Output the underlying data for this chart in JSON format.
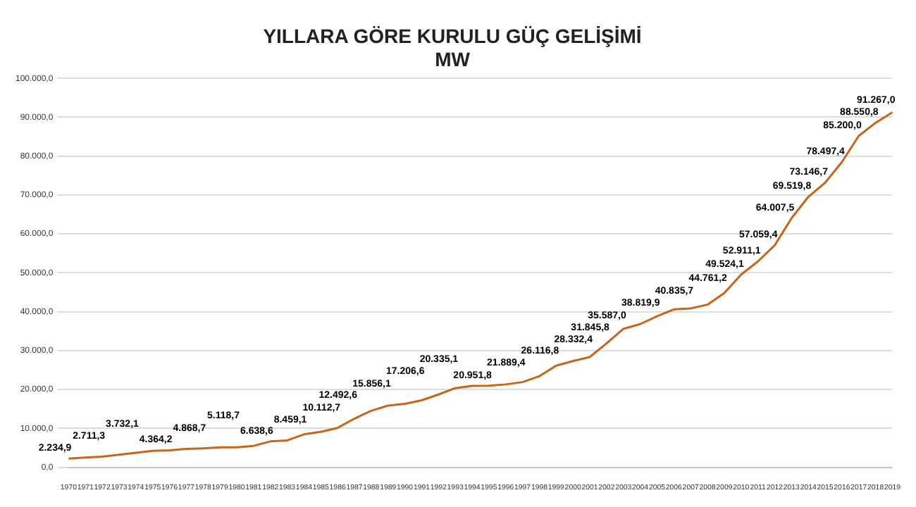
{
  "chart_data": {
    "type": "line",
    "title": "YILLARA GÖRE KURULU GÜÇ GELİŞİMİ",
    "subtitle": "MW",
    "categories": [
      "1970",
      "1971",
      "1972",
      "1973",
      "1974",
      "1975",
      "1976",
      "1977",
      "1978",
      "1979",
      "1980",
      "1981",
      "1982",
      "1983",
      "1984",
      "1985",
      "1986",
      "1987",
      "1988",
      "1989",
      "1990",
      "1991",
      "1992",
      "1993",
      "1994",
      "1995",
      "1996",
      "1997",
      "1998",
      "1999",
      "2000",
      "2001",
      "2002",
      "2003",
      "2004",
      "2005",
      "2006",
      "2007",
      "2008",
      "2009",
      "2010",
      "2011",
      "2012",
      "2013",
      "2014",
      "2015",
      "2016",
      "2017",
      "2018",
      "2019"
    ],
    "series": [
      {
        "color": "#c5651e",
        "values": [
          2234.9,
          2500,
          2711.3,
          3200,
          3732.1,
          4200,
          4364.2,
          4700,
          4868.7,
          5100,
          5118.7,
          5500,
          6638.6,
          6900,
          8459.1,
          9100,
          10112.7,
          12492.6,
          14500,
          15856.1,
          16300,
          17206.6,
          18700,
          20335.1,
          20900,
          20951.8,
          21300,
          21889.4,
          23400,
          26116.8,
          27300,
          28332.4,
          31845.8,
          35587.0,
          36800,
          38819.9,
          40600,
          40835.7,
          41800,
          44761.2,
          49524.1,
          52911.1,
          57059.4,
          64007.5,
          69519.8,
          73146.7,
          78497.4,
          85200.0,
          88550.8,
          91267.0
        ],
        "value_labels": [
          "2.234,9",
          null,
          "2.711,3",
          null,
          "3.732,1",
          null,
          "4.364,2",
          null,
          "4.868,7",
          null,
          "5.118,7",
          null,
          "6.638,6",
          null,
          "8.459,1",
          null,
          "10.112,7",
          "12.492,6",
          null,
          "15.856,1",
          null,
          "17.206,6",
          null,
          "20.335,1",
          null,
          "20.951,8",
          null,
          "21.889,4",
          null,
          "26.116,8",
          null,
          "28.332,4",
          "31.845,8",
          "35.587,0",
          null,
          "38.819,9",
          null,
          "40.835,7",
          null,
          "44.761,2",
          "49.524,1",
          "52.911,1",
          "57.059,4",
          "64.007,5",
          "69.519,8",
          "73.146,7",
          "78.497,4",
          "85.200,0",
          "88.550,8",
          "91.267,0"
        ]
      }
    ],
    "ylim": [
      0,
      100000
    ],
    "yticks": [
      {
        "value": 0,
        "label": "0,0"
      },
      {
        "value": 10000,
        "label": "10.000,0"
      },
      {
        "value": 20000,
        "label": "20.000,0"
      },
      {
        "value": 30000,
        "label": "30.000,0"
      },
      {
        "value": 40000,
        "label": "40.000,0"
      },
      {
        "value": 50000,
        "label": "50.000,0"
      },
      {
        "value": 60000,
        "label": "60.000,0"
      },
      {
        "value": 70000,
        "label": "70.000,0"
      },
      {
        "value": 80000,
        "label": "80.000,0"
      },
      {
        "value": 90000,
        "label": "90.000,0"
      },
      {
        "value": 100000,
        "label": "100.000,0"
      }
    ],
    "grid": "y",
    "legend": false,
    "marker": "none",
    "line_style": "solid"
  }
}
